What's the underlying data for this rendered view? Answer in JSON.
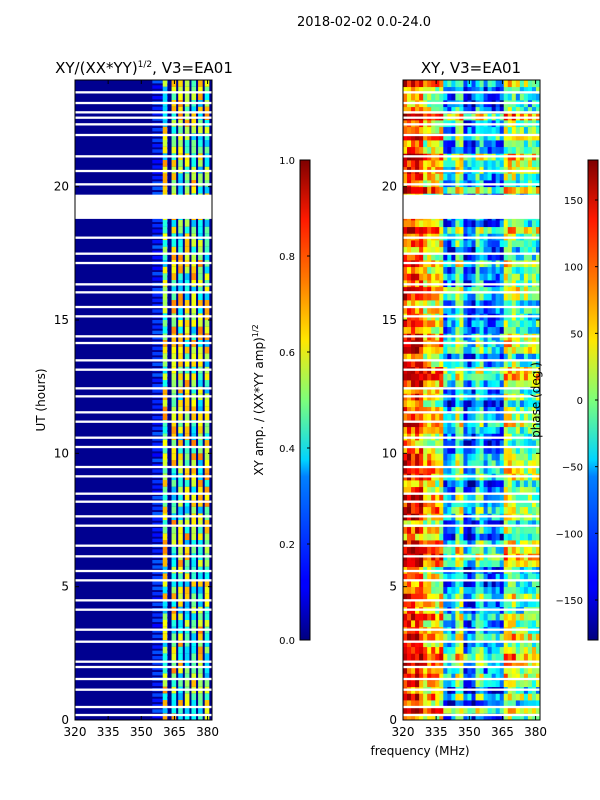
{
  "figure": {
    "suptitle": "2018-02-02 0.0-24.0"
  },
  "chart_data": [
    {
      "type": "heatmap",
      "title_main": "XY/(XX*YY)",
      "title_exp": "1/2",
      "title_suffix": ", V3=EA01",
      "xlabel": "",
      "ylabel": "UT (hours)",
      "x_range": [
        320,
        382
      ],
      "y_range": [
        0,
        24
      ],
      "x_ticks": [
        "320",
        "335",
        "350",
        "365",
        "380"
      ],
      "x_tick_values": [
        320,
        335,
        350,
        365,
        380
      ],
      "y_ticks": [
        "0",
        "5",
        "10",
        "15",
        "20"
      ],
      "y_tick_values": [
        0,
        5,
        10,
        15,
        20
      ],
      "band_freqs": [
        361,
        365,
        368,
        371,
        374,
        377,
        380
      ],
      "colorbar": {
        "label_main": "XY amp. / (XX*YY amp)",
        "label_exp": "1/2",
        "range": [
          0,
          1
        ],
        "ticks": [
          "0.0",
          "0.2",
          "0.4",
          "0.6",
          "0.8",
          "1.0"
        ],
        "tick_values": [
          0,
          0.2,
          0.4,
          0.6,
          0.8,
          1.0
        ]
      }
    },
    {
      "type": "heatmap",
      "title": "XY, V3=EA01",
      "xlabel": "frequency (MHz)",
      "ylabel": "",
      "x_range": [
        320,
        382
      ],
      "y_range": [
        0,
        24
      ],
      "x_ticks": [
        "320",
        "335",
        "350",
        "365",
        "380"
      ],
      "x_tick_values": [
        320,
        335,
        350,
        365,
        380
      ],
      "y_ticks": [
        "0",
        "5",
        "10",
        "15",
        "20"
      ],
      "y_tick_values": [
        0,
        5,
        10,
        15,
        20
      ],
      "colorbar": {
        "label": "phase (deg.)",
        "range": [
          -180,
          180
        ],
        "ticks": [
          "150",
          "100",
          "50",
          "0",
          "−50",
          "−100",
          "−150"
        ],
        "tick_values": [
          150,
          100,
          50,
          0,
          -50,
          -100,
          -150
        ]
      }
    }
  ],
  "gaps_ut": [
    0.15,
    0.45,
    1.1,
    1.5,
    1.95,
    2.15,
    2.9,
    3.35,
    4.1,
    4.45,
    5.2,
    5.55,
    6.1,
    6.5,
    7.25,
    7.6,
    8.15,
    8.45,
    9.1,
    9.45,
    10.2,
    10.55,
    11.15,
    11.5,
    12.1,
    12.4,
    13.1,
    13.45,
    14.1,
    14.35,
    15.1,
    15.45,
    16.0,
    16.3,
    17.1,
    17.45,
    18.05,
    18.8,
    19.3,
    20.05,
    20.55,
    21.1,
    21.9,
    22.3,
    22.55,
    22.75,
    23.1,
    23.5
  ],
  "gap_block_ut": [
    18.8,
    19.7
  ]
}
